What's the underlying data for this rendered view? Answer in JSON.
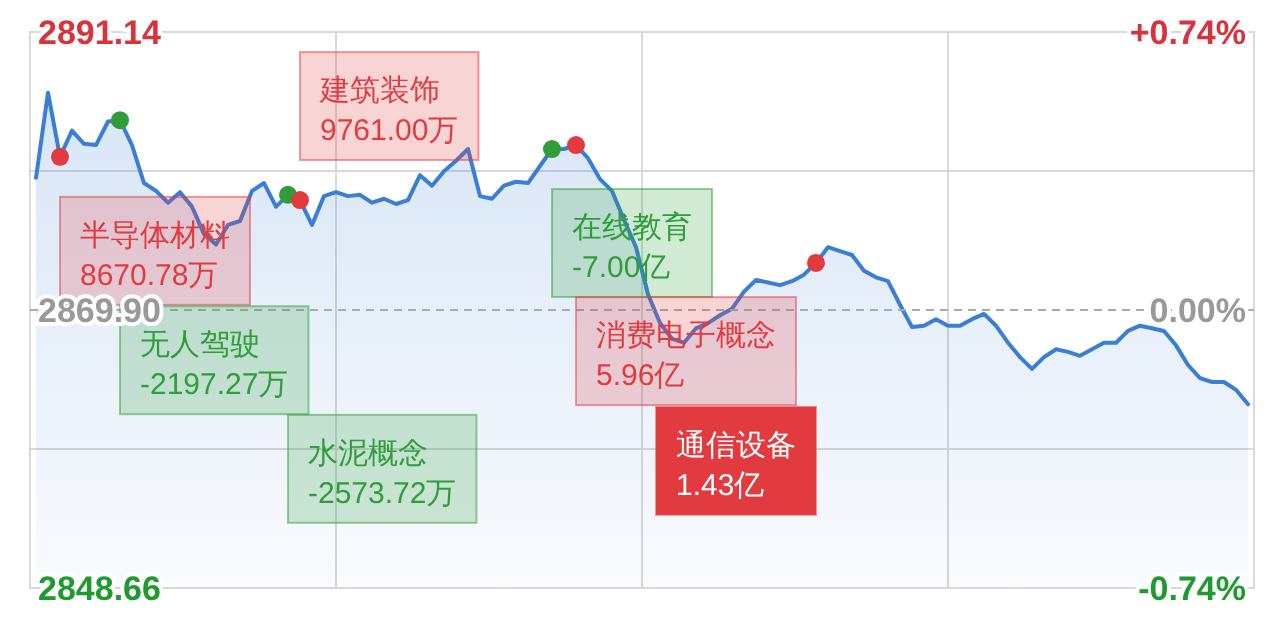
{
  "chart_data": {
    "type": "area",
    "categories": [
      null,
      null,
      null,
      null,
      null,
      null,
      null,
      null,
      null,
      null,
      null,
      null,
      null,
      null,
      null,
      null,
      null,
      null,
      null,
      null,
      null,
      null,
      null,
      null,
      null,
      null,
      null,
      null,
      null,
      null,
      null,
      null,
      null,
      null,
      null,
      null,
      null,
      null,
      null,
      null,
      null,
      null,
      null,
      null,
      null,
      null,
      null,
      null,
      null,
      null,
      null,
      null,
      null,
      null,
      null,
      null,
      null,
      null,
      null,
      null,
      null,
      null,
      null,
      null,
      null,
      null,
      null,
      null,
      null,
      null,
      null,
      null,
      null,
      null,
      null,
      null,
      null,
      null,
      null,
      null,
      null,
      null,
      null,
      null,
      null,
      null,
      null,
      null,
      null,
      null,
      null,
      null,
      null,
      null,
      null,
      null,
      null,
      null,
      null,
      null,
      null,
      null
    ],
    "series": [
      {
        "color": "#3a7fd5",
        "values": [
          2880.0,
          2886.5,
          2881.6,
          2883.6,
          2882.6,
          2882.5,
          2884.3,
          2884.4,
          2882.5,
          2879.6,
          2879.0,
          2878.1,
          2878.9,
          2877.8,
          2875.7,
          2874.9,
          2876.4,
          2876.7,
          2879.0,
          2879.6,
          2877.8,
          2878.7,
          2878.3,
          2876.4,
          2878.6,
          2878.9,
          2878.6,
          2878.7,
          2878.1,
          2878.4,
          2878.0,
          2878.3,
          2880.2,
          2879.4,
          2880.5,
          2881.3,
          2882.2,
          2878.6,
          2878.4,
          2879.4,
          2879.7,
          2879.6,
          2880.9,
          2882.2,
          2882.2,
          2882.5,
          2881.5,
          2879.9,
          2879.0,
          2876.8,
          2874.7,
          2871.1,
          2868.9,
          2867.7,
          2867.4,
          2868.5,
          2868.9,
          2869.5,
          2870.0,
          2871.3,
          2872.2,
          2872.0,
          2871.8,
          2872.1,
          2872.6,
          2873.5,
          2874.7,
          2874.4,
          2874.1,
          2872.9,
          2872.4,
          2872.1,
          2870.3,
          2868.6,
          2868.7,
          2869.2,
          2868.7,
          2868.7,
          2869.2,
          2869.6,
          2868.7,
          2867.4,
          2866.3,
          2865.4,
          2866.3,
          2866.9,
          2866.7,
          2866.4,
          2866.9,
          2867.4,
          2867.4,
          2868.3,
          2868.7,
          2868.5,
          2868.3,
          2867.2,
          2865.7,
          2864.7,
          2864.4,
          2864.4,
          2863.8,
          2862.7
        ]
      },
      {
        "type": "scatter",
        "color": "#e23b3f",
        "values": [
          null,
          null,
          2881.6,
          null,
          null,
          null,
          null,
          null,
          null,
          null,
          null,
          null,
          null,
          null,
          null,
          null,
          null,
          null,
          null,
          null,
          null,
          null,
          2878.3,
          null,
          null,
          null,
          null,
          null,
          null,
          null,
          null,
          null,
          null,
          null,
          null,
          null,
          null,
          null,
          null,
          null,
          null,
          null,
          null,
          null,
          null,
          2882.5,
          null,
          null,
          null,
          null,
          null,
          null,
          null,
          null,
          null,
          null,
          null,
          null,
          null,
          null,
          null,
          null,
          null,
          null,
          null,
          2873.5,
          null,
          null,
          null,
          null,
          null,
          null,
          null,
          null,
          null,
          null,
          null,
          null,
          null,
          null,
          null,
          null,
          null,
          null,
          null,
          null,
          null,
          null,
          null,
          null,
          null,
          null,
          null,
          null,
          null,
          null,
          null,
          null,
          null,
          null,
          null,
          null
        ]
      },
      {
        "type": "scatter",
        "color": "#2f9e3a",
        "values": [
          null,
          null,
          null,
          null,
          null,
          null,
          null,
          2884.4,
          null,
          null,
          null,
          null,
          null,
          null,
          null,
          null,
          null,
          null,
          null,
          null,
          null,
          2878.7,
          null,
          null,
          null,
          null,
          null,
          null,
          null,
          null,
          null,
          null,
          null,
          null,
          null,
          null,
          null,
          null,
          null,
          null,
          null,
          null,
          null,
          2882.2,
          null,
          null,
          null,
          null,
          null,
          null,
          null,
          null,
          null,
          null,
          null,
          null,
          null,
          null,
          null,
          null,
          null,
          null,
          null,
          null,
          null,
          null,
          null,
          null,
          null,
          null,
          null,
          null,
          null,
          null,
          null,
          null,
          null,
          null,
          null,
          null,
          null,
          null,
          null,
          null,
          null,
          null,
          null,
          null,
          null,
          null,
          null,
          null,
          null,
          null,
          null,
          null,
          null,
          null,
          null,
          null,
          null,
          null
        ]
      }
    ],
    "ylim": [
      2848.66,
      2891.14
    ],
    "yticks": [
      2848.66,
      {
        "value": 2859.28,
        "label": null
      },
      {
        "value": 2869.9,
        "label": "2869.90"
      },
      {
        "value": 2880.52,
        "label": null
      },
      2891.14
    ],
    "y2lim": [
      -0.74,
      0.74
    ],
    "y2ticks": [
      {
        "value": -0.74,
        "label": "-0.74%"
      },
      {
        "value": 0,
        "label": "0.00%"
      },
      {
        "value": 0.74,
        "label": "+0.74%"
      }
    ],
    "ref_lines": [
      {
        "axis": "y",
        "value": 2869.9,
        "color": "#aaaaaa",
        "line_style": "dashed"
      }
    ],
    "grid": true,
    "annotations": [
      "半导体材料\n8670.78万",
      "无人驾驶\n-2197.27万",
      "水泥概念\n-2573.72万",
      "建筑装饰\n9761.00万",
      "在线教育\n-7.00亿",
      "消费电子概念\n5.96亿",
      "通信设备\n1.43亿"
    ]
  }
}
